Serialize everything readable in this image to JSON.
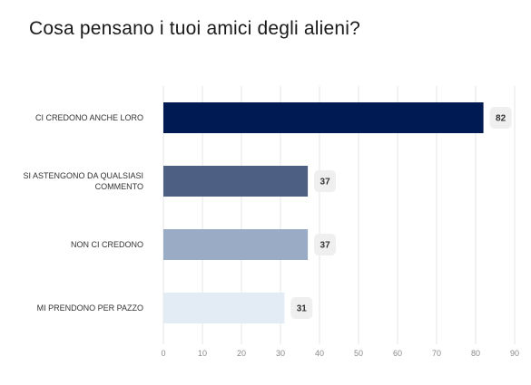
{
  "chart_data": {
    "type": "bar",
    "orientation": "horizontal",
    "title": "Cosa pensano i tuoi amici degli alieni?",
    "categories": [
      "CI CREDONO ANCHE LORO",
      "SI ASTENGONO DA QUALSIASI COMMENTO",
      "NON CI CREDONO",
      "MI PRENDONO PER PAZZO"
    ],
    "category_lines": [
      [
        "CI CREDONO ANCHE LORO"
      ],
      [
        "SI ASTENGONO DA QUALSIASI",
        "COMMENTO"
      ],
      [
        "NON CI CREDONO"
      ],
      [
        "MI PRENDONO PER PAZZO"
      ]
    ],
    "values": [
      82,
      37,
      37,
      31
    ],
    "value_labels": [
      "82",
      "37",
      "37",
      "31"
    ],
    "bar_colors": [
      "#001a54",
      "#4d5f82",
      "#9aabc6",
      "#e3ebf4"
    ],
    "xlim": [
      0,
      90
    ],
    "xticks": [
      0,
      10,
      20,
      30,
      40,
      50,
      60,
      70,
      80,
      90
    ],
    "xtick_labels": [
      "0",
      "10",
      "20",
      "30",
      "40",
      "50",
      "60",
      "70",
      "80",
      "90"
    ],
    "xlabel": "",
    "ylabel": "",
    "grid": true,
    "legend": "none",
    "gridline_color": "#e6e6e6",
    "value_badge_color": "#efefef"
  }
}
